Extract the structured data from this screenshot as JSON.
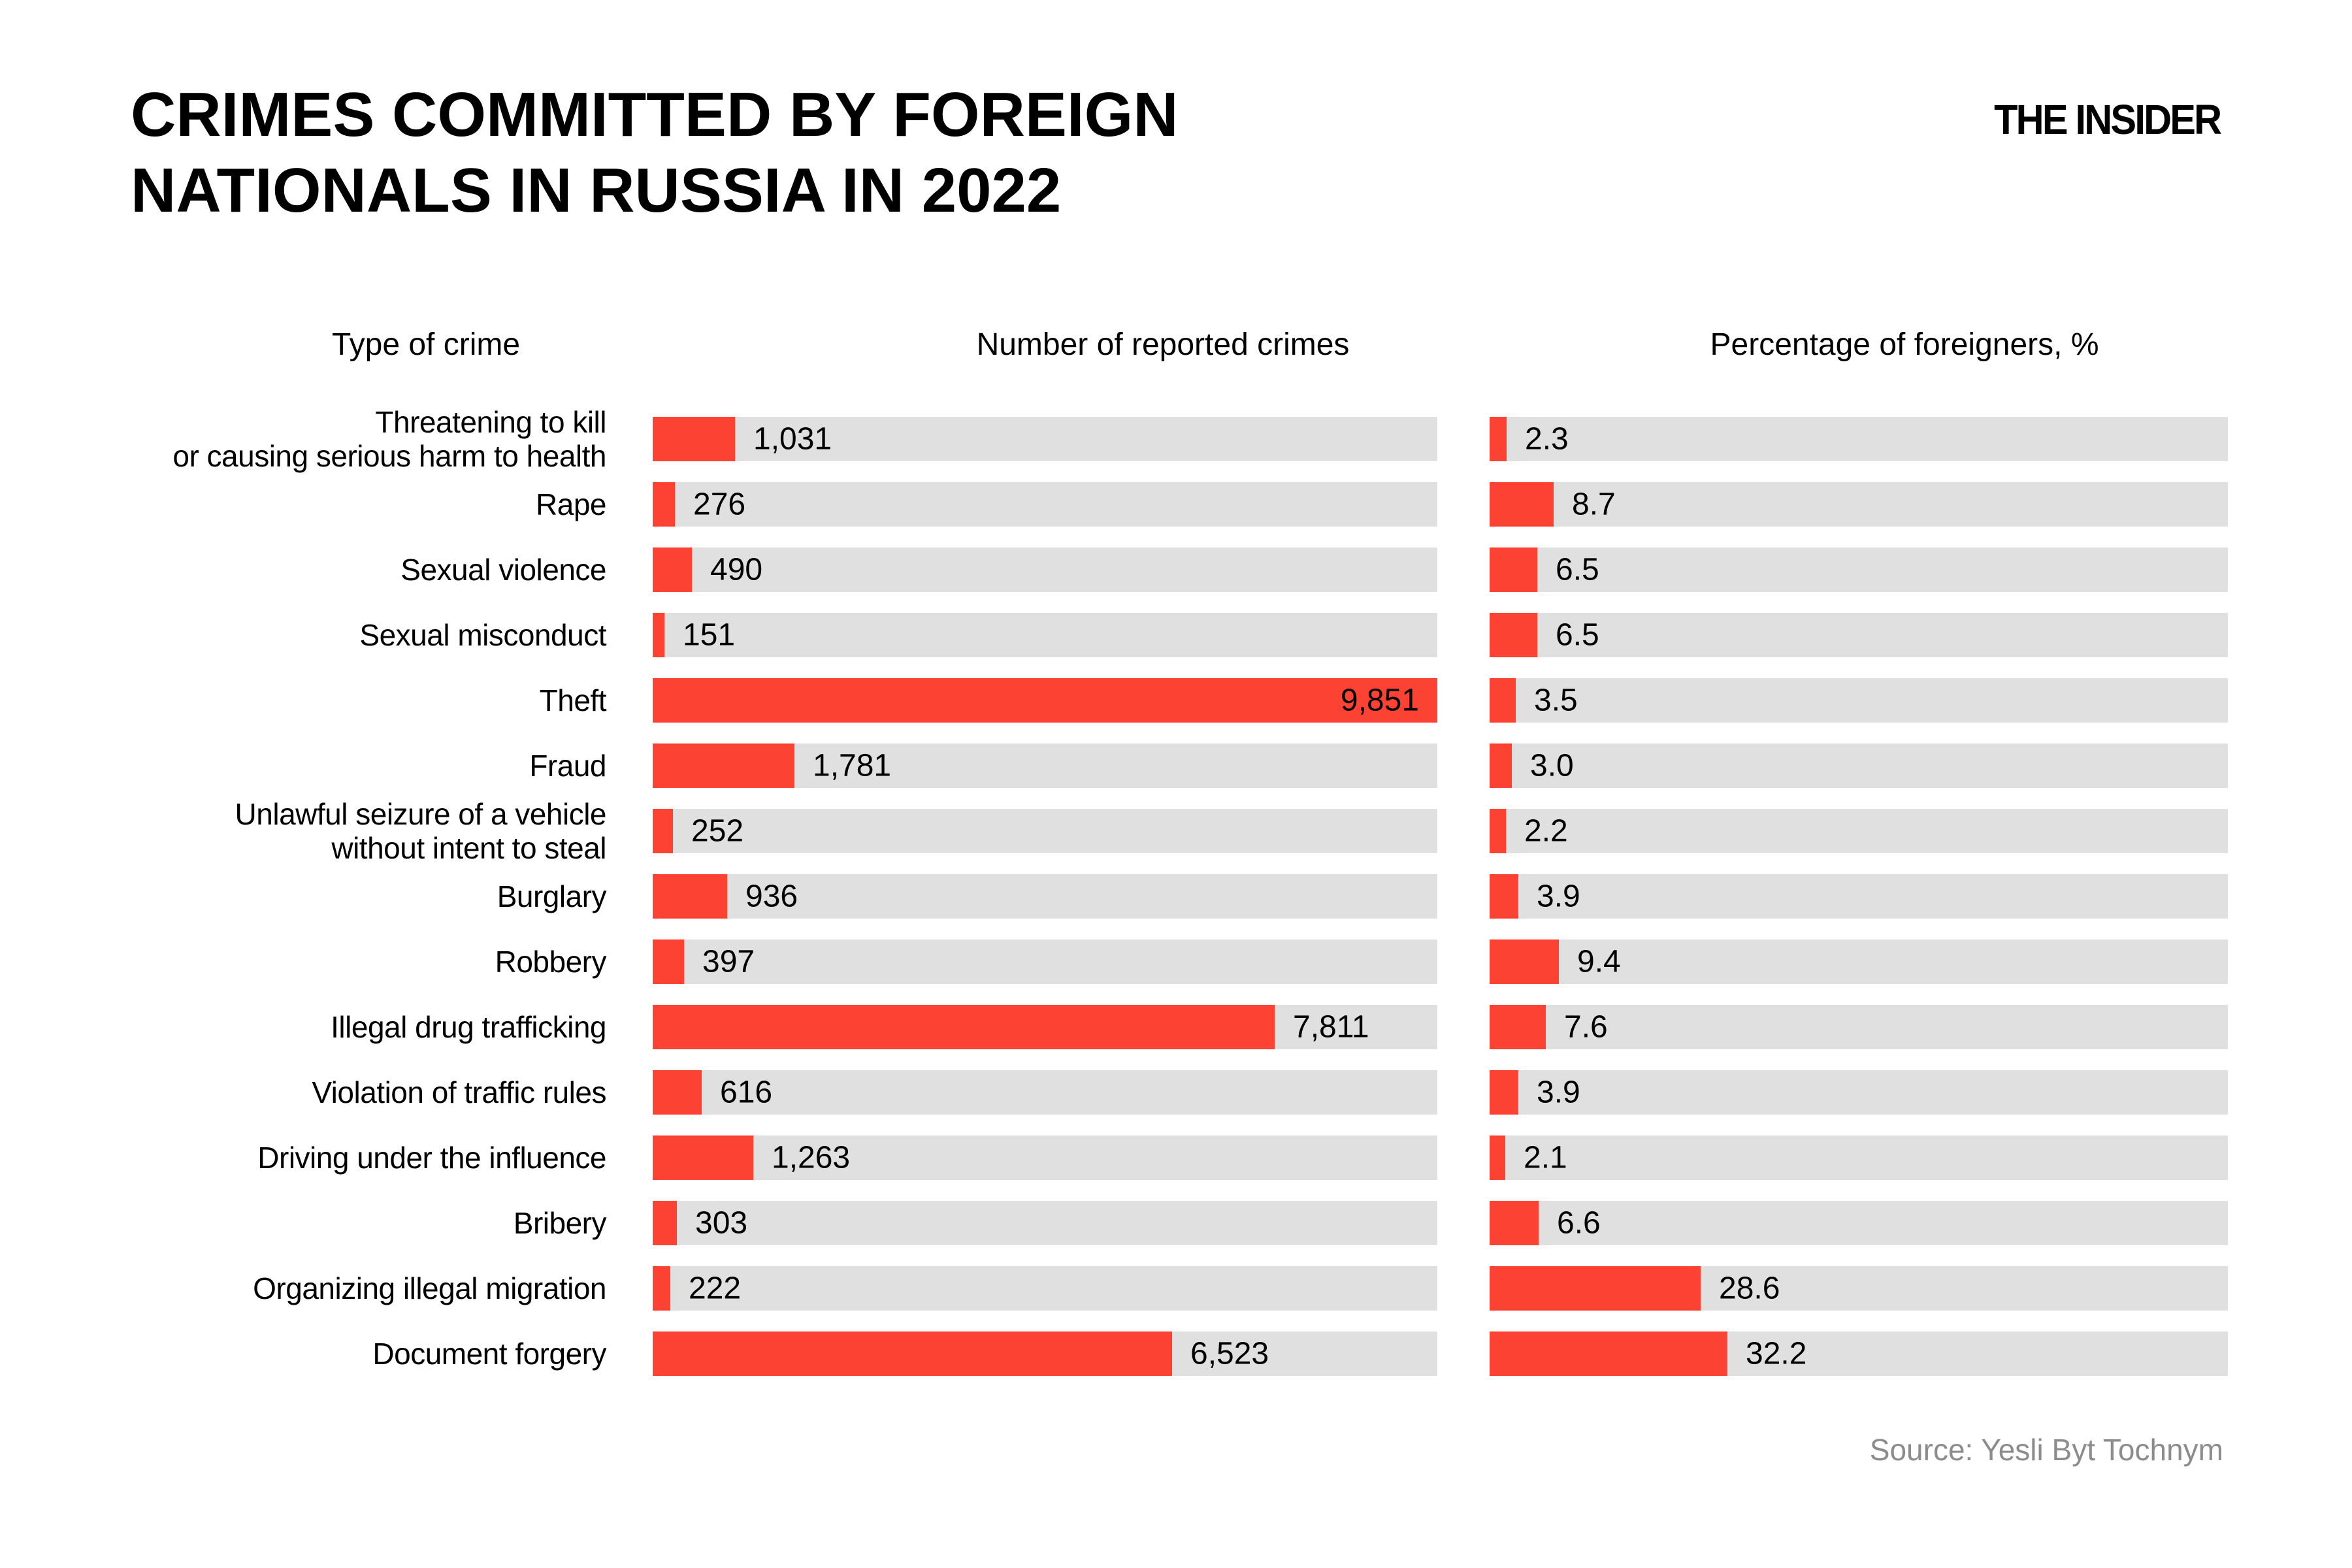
{
  "title": {
    "line1": "CRIMES COMMITTED BY FOREIGN",
    "line2": "NATIONALS IN RUSSIA IN 2022"
  },
  "logo": "THE INSIDER",
  "columns": {
    "crime": "Type of crime",
    "count": "Number of reported crimes",
    "pct": "Percentage of foreigners, %"
  },
  "source": "Source: Yesli Byt Tochnym",
  "colors": {
    "accent": "#FC4333",
    "track": "#E0E0E0",
    "text": "#000000",
    "muted": "#8C8C8C"
  },
  "chart_data": {
    "type": "bar",
    "title": "Crimes committed by foreign nationals in Russia in 2022",
    "orientation": "horizontal",
    "count_axis_max": 9851,
    "pct_axis_max": 100,
    "grid": false,
    "legend": false,
    "rows": [
      {
        "label_lines": [
          "Threatening to kill",
          "or causing serious harm to health"
        ],
        "count": 1031,
        "count_label": "1,031",
        "pct": 2.3,
        "pct_label": "2.3"
      },
      {
        "label_lines": [
          "Rape"
        ],
        "count": 276,
        "count_label": "276",
        "pct": 8.7,
        "pct_label": "8.7"
      },
      {
        "label_lines": [
          "Sexual violence"
        ],
        "count": 490,
        "count_label": "490",
        "pct": 6.5,
        "pct_label": "6.5"
      },
      {
        "label_lines": [
          "Sexual misconduct"
        ],
        "count": 151,
        "count_label": "151",
        "pct": 6.5,
        "pct_label": "6.5"
      },
      {
        "label_lines": [
          "Theft"
        ],
        "count": 9851,
        "count_label": "9,851",
        "pct": 3.5,
        "pct_label": "3.5"
      },
      {
        "label_lines": [
          "Fraud"
        ],
        "count": 1781,
        "count_label": "1,781",
        "pct": 3.0,
        "pct_label": "3.0"
      },
      {
        "label_lines": [
          "Unlawful seizure of a vehicle",
          "without intent to steal"
        ],
        "count": 252,
        "count_label": "252",
        "pct": 2.2,
        "pct_label": "2.2"
      },
      {
        "label_lines": [
          "Burglary"
        ],
        "count": 936,
        "count_label": "936",
        "pct": 3.9,
        "pct_label": "3.9"
      },
      {
        "label_lines": [
          "Robbery"
        ],
        "count": 397,
        "count_label": "397",
        "pct": 9.4,
        "pct_label": "9.4"
      },
      {
        "label_lines": [
          "Illegal drug trafficking"
        ],
        "count": 7811,
        "count_label": "7,811",
        "pct": 7.6,
        "pct_label": "7.6"
      },
      {
        "label_lines": [
          "Violation of traffic rules"
        ],
        "count": 616,
        "count_label": "616",
        "pct": 3.9,
        "pct_label": "3.9"
      },
      {
        "label_lines": [
          "Driving under the influence"
        ],
        "count": 1263,
        "count_label": "1,263",
        "pct": 2.1,
        "pct_label": "2.1"
      },
      {
        "label_lines": [
          "Bribery"
        ],
        "count": 303,
        "count_label": "303",
        "pct": 6.6,
        "pct_label": "6.6"
      },
      {
        "label_lines": [
          "Organizing illegal migration"
        ],
        "count": 222,
        "count_label": "222",
        "pct": 28.6,
        "pct_label": "28.6"
      },
      {
        "label_lines": [
          "Document forgery"
        ],
        "count": 6523,
        "count_label": "6,523",
        "pct": 32.2,
        "pct_label": "32.2"
      }
    ]
  }
}
